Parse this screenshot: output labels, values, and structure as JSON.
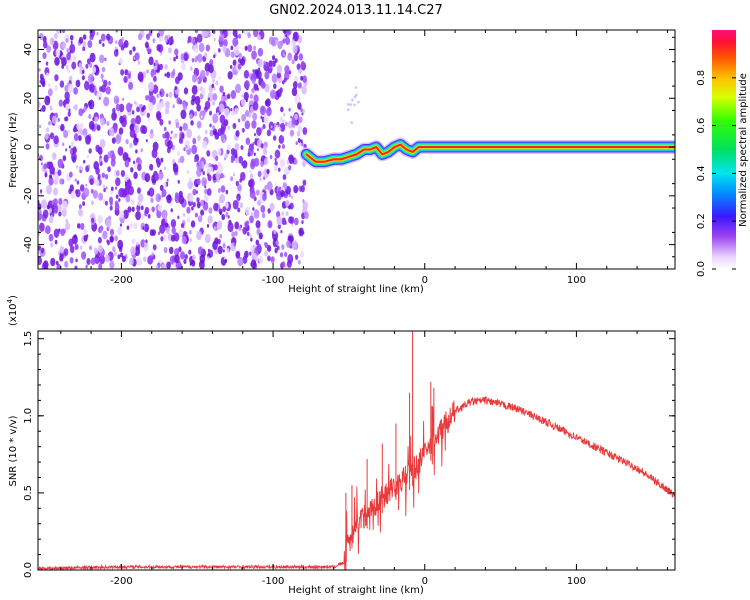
{
  "title": "GN02.2024.013.11.14.C27",
  "colors": {
    "snr_line": "#e83a3a",
    "noise_speckle": "#7b1fe6",
    "track_core": "#ff2020",
    "axis": "#000000"
  },
  "chart_data": [
    {
      "type": "heatmap",
      "xlabel": "Height of straight line (km)",
      "ylabel": "Frequency (Hz)",
      "xlim": [
        -255,
        165
      ],
      "ylim": [
        -50,
        48
      ],
      "xticks": [
        {
          "value": -200,
          "label": "-200"
        },
        {
          "value": -100,
          "label": "-100"
        },
        {
          "value": 0,
          "label": "0"
        },
        {
          "value": 100,
          "label": "100"
        }
      ],
      "yticks": [
        {
          "value": -40,
          "label": "-40"
        },
        {
          "value": -20,
          "label": "-20"
        },
        {
          "value": 0,
          "label": "0"
        },
        {
          "value": 20,
          "label": "20"
        },
        {
          "value": 40,
          "label": "40"
        }
      ],
      "noise_region_x": [
        -255,
        -78
      ],
      "track": {
        "x": [
          -78,
          -72,
          -66,
          -60,
          -55,
          -50,
          -45,
          -40,
          -36,
          -32,
          -28,
          -24,
          -20,
          -16,
          -12,
          -8,
          -4,
          0,
          5,
          165
        ],
        "y": [
          -3,
          -6,
          -6,
          -5,
          -5,
          -4,
          -3,
          -1,
          -1,
          0,
          -3,
          -2,
          0,
          1,
          -1,
          -2,
          0,
          0,
          0,
          0
        ]
      },
      "colorbar": {
        "label": "Normalized spectral amplitude",
        "range": [
          0,
          1
        ],
        "ticks": [
          {
            "value": 0.0,
            "label": "0.0"
          },
          {
            "value": 0.2,
            "label": "0.2"
          },
          {
            "value": 0.4,
            "label": "0.4"
          },
          {
            "value": 0.6,
            "label": "0.6"
          },
          {
            "value": 0.8,
            "label": "0.8"
          }
        ]
      }
    },
    {
      "type": "line",
      "xlabel": "Height of straight line (km)",
      "ylabel": "SNR (10 * v/v)",
      "yscale_label": "(x10",
      "yscale_exp": "4",
      "yscale_close": ")",
      "xlim": [
        -255,
        165
      ],
      "ylim": [
        0,
        1.55
      ],
      "xticks": [
        {
          "value": -200,
          "label": "-200"
        },
        {
          "value": -100,
          "label": "-100"
        },
        {
          "value": 0,
          "label": "0"
        },
        {
          "value": 100,
          "label": "100"
        }
      ],
      "yticks": [
        {
          "value": 0.0,
          "label": "0.0"
        },
        {
          "value": 0.5,
          "label": "0.5"
        },
        {
          "value": 1.0,
          "label": "1.0"
        },
        {
          "value": 1.5,
          "label": "1.5"
        }
      ],
      "series": [
        {
          "x": [
            -255,
            -200,
            -150,
            -100,
            -60,
            -53,
            -50,
            -45,
            -40,
            -35,
            -30,
            -25,
            -20,
            -15,
            -10,
            -5,
            0,
            10,
            20,
            30,
            40,
            60,
            80,
            100,
            120,
            140,
            160,
            165
          ],
          "y": [
            0.01,
            0.02,
            0.02,
            0.02,
            0.02,
            0.05,
            0.2,
            0.3,
            0.35,
            0.4,
            0.45,
            0.5,
            0.55,
            0.58,
            0.62,
            0.68,
            0.75,
            0.9,
            1.03,
            1.09,
            1.1,
            1.05,
            0.96,
            0.86,
            0.76,
            0.66,
            0.52,
            0.48
          ]
        }
      ],
      "spikes": [
        {
          "x": -8,
          "y": 1.55
        },
        {
          "x": -10,
          "y": 1.15
        },
        {
          "x": 4,
          "y": 1.22
        },
        {
          "x": 6,
          "y": 1.18
        },
        {
          "x": -19,
          "y": 0.95
        },
        {
          "x": -28,
          "y": 0.82
        },
        {
          "x": -52,
          "y": 0.5
        },
        {
          "x": -48,
          "y": 0.55
        },
        {
          "x": -38,
          "y": 0.72
        }
      ]
    }
  ]
}
